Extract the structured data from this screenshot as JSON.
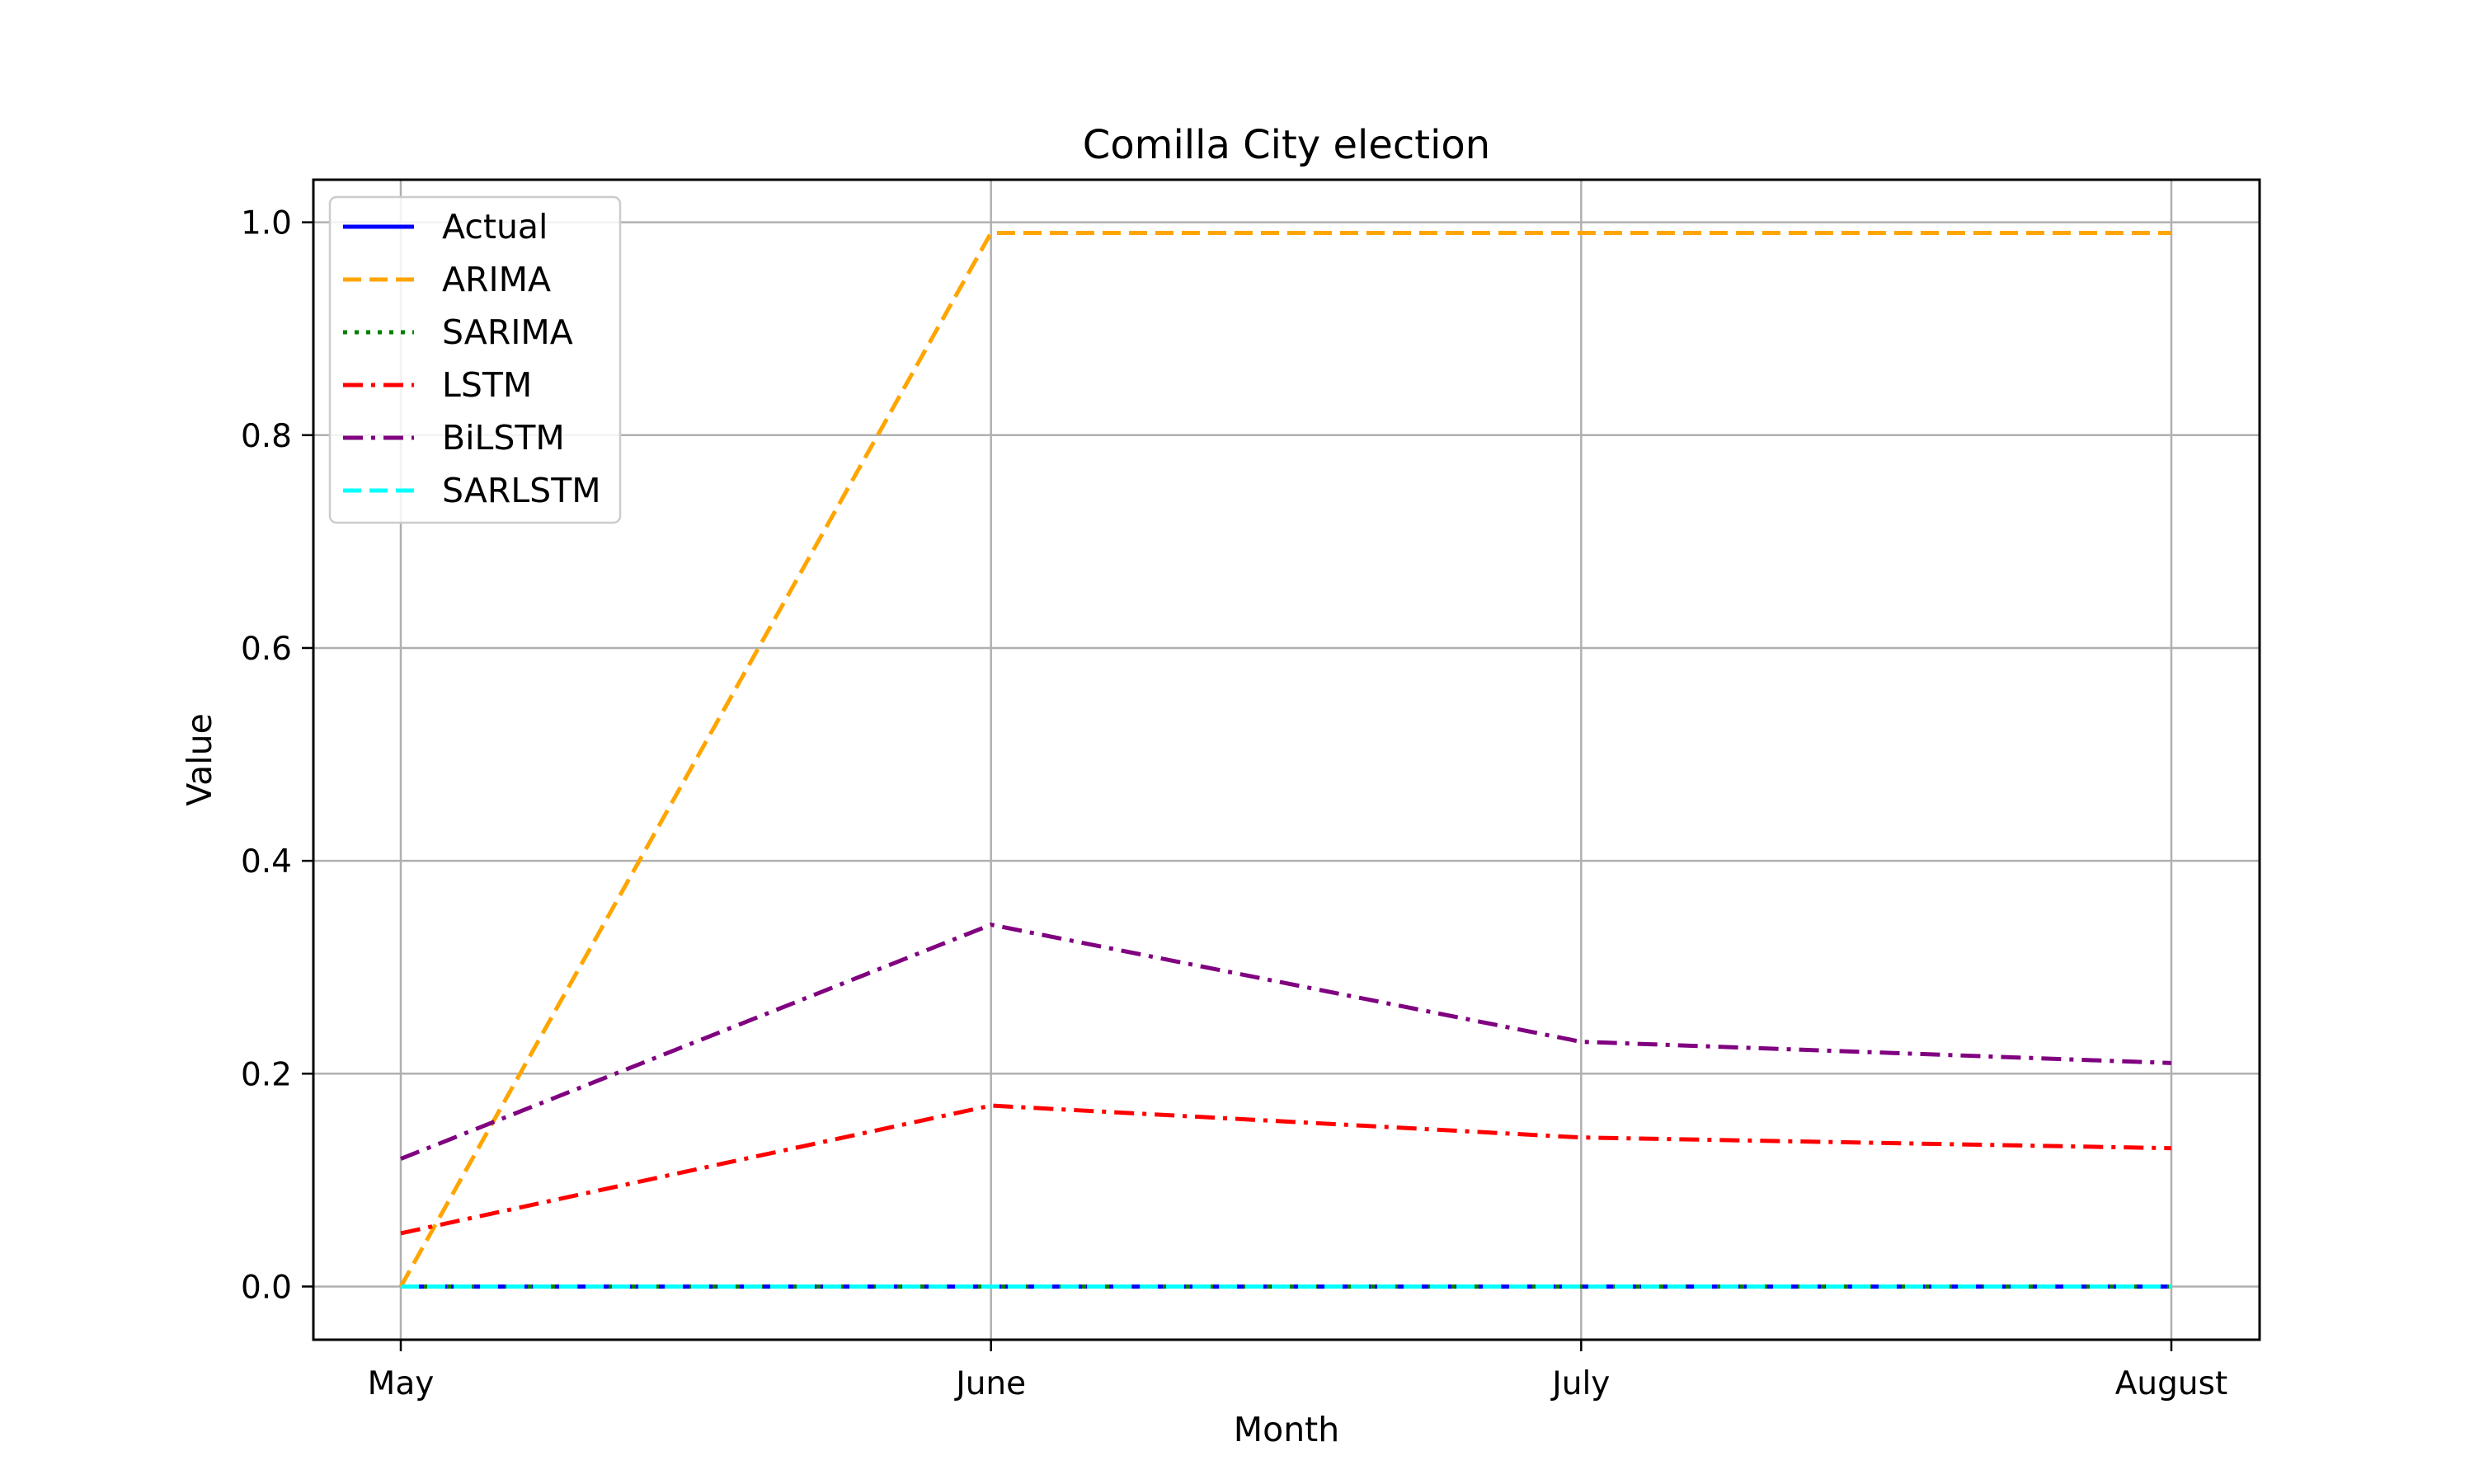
{
  "chart_data": {
    "type": "line",
    "title": "Comilla City election",
    "xlabel": "Month",
    "ylabel": "Value",
    "categories": [
      "May",
      "June",
      "July",
      "August"
    ],
    "ylim": [
      -0.05,
      1.04
    ],
    "yticks": [
      0.0,
      0.2,
      0.4,
      0.6,
      0.8,
      1.0
    ],
    "ytick_labels": [
      "0.0",
      "0.2",
      "0.4",
      "0.6",
      "0.8",
      "1.0"
    ],
    "grid": true,
    "legend_position": "top-left",
    "series": [
      {
        "name": "Actual",
        "values": [
          0.0,
          0.0,
          0.0,
          0.0
        ],
        "color": "#0000ff",
        "style": "solid"
      },
      {
        "name": "ARIMA",
        "values": [
          0.0,
          0.99,
          0.99,
          0.99
        ],
        "color": "#ffa500",
        "style": "dashed"
      },
      {
        "name": "SARIMA",
        "values": [
          0.0,
          0.0,
          0.0,
          0.0
        ],
        "color": "#008000",
        "style": "dotted"
      },
      {
        "name": "LSTM",
        "values": [
          0.05,
          0.17,
          0.14,
          0.13
        ],
        "color": "#ff0000",
        "style": "dashdot"
      },
      {
        "name": "BiLSTM",
        "values": [
          0.12,
          0.34,
          0.23,
          0.21
        ],
        "color": "#800080",
        "style": "dashdot"
      },
      {
        "name": "SARLSTM",
        "values": [
          0.0,
          0.0,
          0.0,
          0.0
        ],
        "color": "#00ffff",
        "style": "dashed"
      }
    ]
  }
}
